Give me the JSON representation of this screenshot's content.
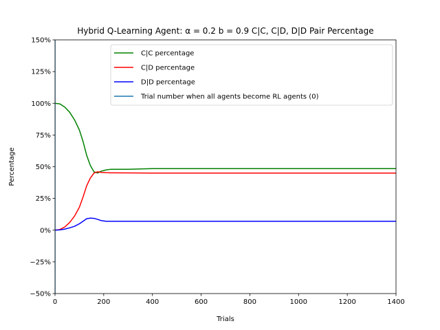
{
  "chart_data": {
    "type": "line",
    "title": "Hybrid Q-Learning Agent: α = 0.2 b = 0.9  C|C, C|D, D|D Pair Percentage",
    "xlabel": "Trials",
    "ylabel": "Percentage",
    "xlim": [
      0,
      1400
    ],
    "ylim": [
      -50,
      150
    ],
    "xticks": [
      0,
      200,
      400,
      600,
      800,
      1000,
      1200,
      1400
    ],
    "xtick_labels": [
      "0",
      "200",
      "400",
      "600",
      "800",
      "1000",
      "1200",
      "1400"
    ],
    "yticks": [
      -50,
      -25,
      0,
      25,
      50,
      75,
      100,
      125,
      150
    ],
    "ytick_labels": [
      "−50%",
      "−25%",
      "0%",
      "25%",
      "50%",
      "75%",
      "100%",
      "125%",
      "150%"
    ],
    "legend_position": "top-center",
    "grid": false,
    "series": [
      {
        "name": "C|C percentage",
        "color": "#008000",
        "x": [
          0,
          20,
          40,
          60,
          80,
          100,
          115,
          130,
          145,
          160,
          175,
          190,
          210,
          230,
          300,
          400,
          600,
          800,
          1000,
          1200,
          1400
        ],
        "y": [
          100,
          99.5,
          97,
          93,
          87,
          79,
          70,
          59,
          51,
          46,
          45,
          46.5,
          47.5,
          48,
          48,
          48.5,
          48.5,
          48.5,
          48.5,
          48.5,
          48.5
        ]
      },
      {
        "name": "C|D percentage",
        "color": "#ff0000",
        "x": [
          0,
          20,
          40,
          60,
          80,
          100,
          115,
          130,
          145,
          160,
          175,
          190,
          210,
          230,
          300,
          400,
          600,
          800,
          1000,
          1200,
          1400
        ],
        "y": [
          0,
          0.5,
          2.5,
          6,
          11,
          18,
          26,
          35,
          41,
          45,
          46,
          45.5,
          45.3,
          45.2,
          45.1,
          45,
          45,
          45,
          45,
          45,
          45
        ]
      },
      {
        "name": "D|D percentage",
        "color": "#0000ff",
        "x": [
          0,
          20,
          40,
          60,
          80,
          100,
          115,
          130,
          145,
          160,
          175,
          190,
          210,
          230,
          300,
          400,
          600,
          800,
          1000,
          1200,
          1400
        ],
        "y": [
          0,
          0.2,
          0.8,
          1.8,
          3,
          5,
          7,
          9,
          9.5,
          9.3,
          8.5,
          7.5,
          7,
          7,
          7,
          7,
          7,
          7,
          7,
          7,
          7
        ]
      },
      {
        "name": "Trial number when all agents become RL agents (0)",
        "color": "#1f77b4",
        "x": [
          0,
          0
        ],
        "y": [
          -50,
          150
        ]
      }
    ]
  }
}
